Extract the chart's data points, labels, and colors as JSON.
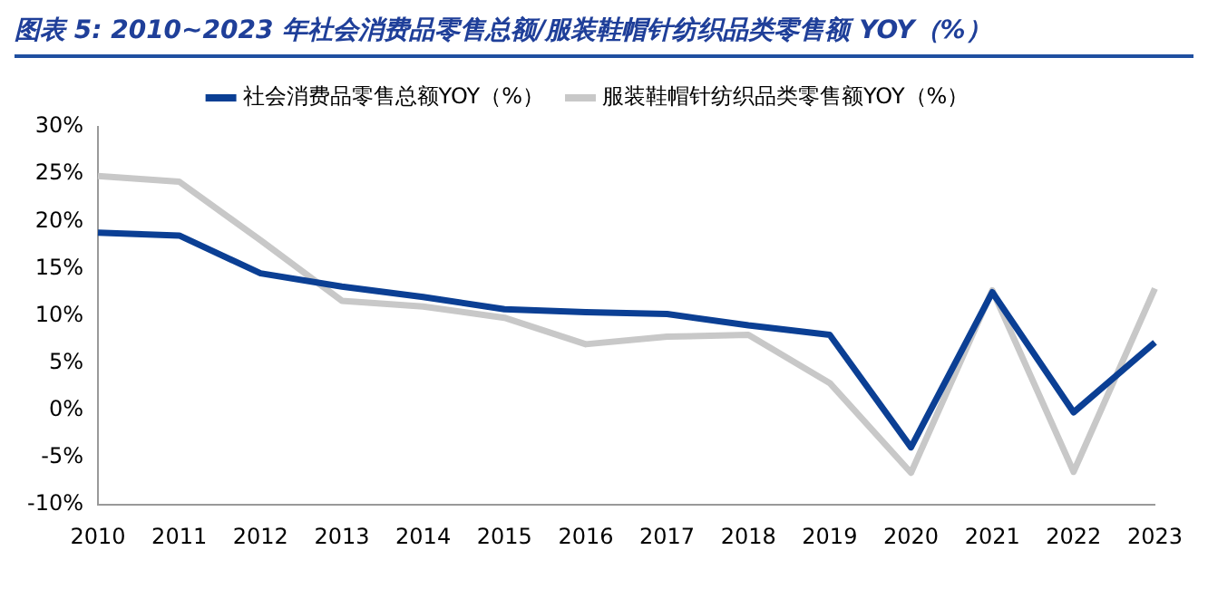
{
  "chart_data": {
    "type": "line",
    "title": "图表 5:  2010~2023 年社会消费品零售总额/服装鞋帽针纺织品类零售额 YOY（%）",
    "categories": [
      "2010",
      "2011",
      "2012",
      "2013",
      "2014",
      "2015",
      "2016",
      "2017",
      "2018",
      "2019",
      "2020",
      "2021",
      "2022",
      "2023"
    ],
    "series": [
      {
        "name": "社会消费品零售总额YOY（%）",
        "color": "#0b3f94",
        "values": [
          18.8,
          18.5,
          14.5,
          13.1,
          12.0,
          10.7,
          10.4,
          10.2,
          9.0,
          8.0,
          -3.9,
          12.5,
          -0.2,
          7.2
        ]
      },
      {
        "name": "服装鞋帽针纺织品类零售额YOY（%）",
        "color": "#c8c8c8",
        "values": [
          24.8,
          24.2,
          18.0,
          11.6,
          11.0,
          9.8,
          7.0,
          7.8,
          8.0,
          2.9,
          -6.6,
          12.7,
          -6.5,
          12.9
        ]
      }
    ],
    "ylim": [
      -10,
      30
    ],
    "yticks": [
      {
        "value": -10,
        "label": "-10%"
      },
      {
        "value": -5,
        "label": "-5%"
      },
      {
        "value": 0,
        "label": "0%"
      },
      {
        "value": 5,
        "label": "5%"
      },
      {
        "value": 10,
        "label": "10%"
      },
      {
        "value": 15,
        "label": "15%"
      },
      {
        "value": 20,
        "label": "20%"
      },
      {
        "value": 25,
        "label": "25%"
      },
      {
        "value": 30,
        "label": "30%"
      }
    ],
    "legend": "top",
    "grid": false,
    "marker": "none",
    "line_style": "solid"
  }
}
